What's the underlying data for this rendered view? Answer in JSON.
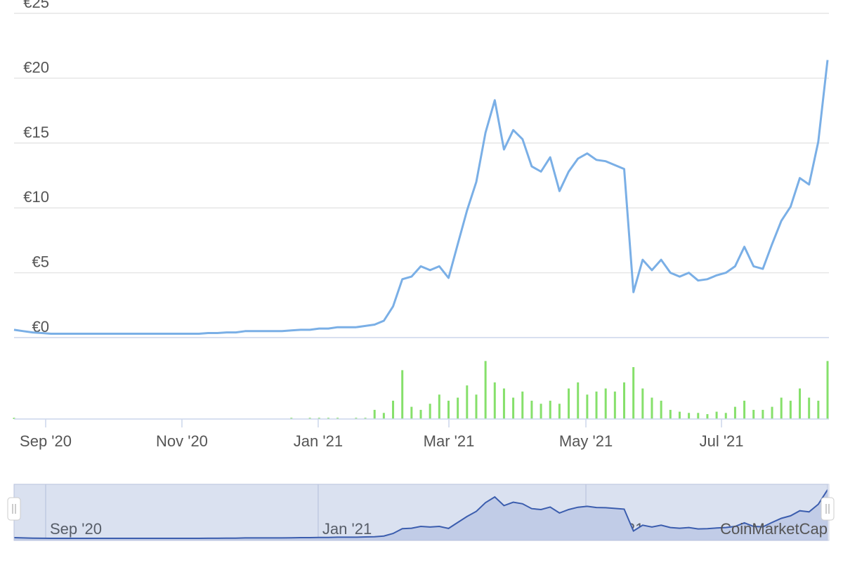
{
  "chart_data": [
    {
      "type": "line",
      "color": "#7aafe6",
      "values": [
        0.6,
        0.5,
        0.4,
        0.35,
        0.3,
        0.3,
        0.3,
        0.3,
        0.3,
        0.3,
        0.3,
        0.3,
        0.3,
        0.3,
        0.3,
        0.3,
        0.3,
        0.3,
        0.3,
        0.3,
        0.3,
        0.35,
        0.35,
        0.4,
        0.4,
        0.5,
        0.5,
        0.5,
        0.5,
        0.5,
        0.55,
        0.6,
        0.6,
        0.7,
        0.7,
        0.8,
        0.8,
        0.8,
        0.9,
        1.0,
        1.3,
        2.4,
        4.5,
        4.7,
        5.5,
        5.2,
        5.5,
        4.6,
        7.2,
        9.8,
        12.0,
        15.8,
        18.3,
        14.5,
        16.0,
        15.3,
        13.2,
        12.8,
        13.9,
        11.3,
        12.8,
        13.8,
        14.2,
        13.7,
        13.6,
        13.3,
        13.0,
        3.5,
        6.0,
        5.2,
        6.0,
        5.0,
        4.7,
        5.0,
        4.4,
        4.5,
        4.8,
        5.0,
        5.5,
        7.0,
        5.5,
        5.3,
        7.2,
        9.0,
        10.1,
        12.3,
        11.8,
        15.1,
        21.4
      ],
      "xlim": [
        0,
        88
      ],
      "xticks": [
        {
          "value": 3.42,
          "label": "Sep '20"
        },
        {
          "value": 18.16,
          "label": "Nov '20"
        },
        {
          "value": 32.9,
          "label": "Jan '21"
        },
        {
          "value": 47.04,
          "label": "Mar '21"
        },
        {
          "value": 61.86,
          "label": "May '21"
        },
        {
          "value": 76.53,
          "label": "Jul '21"
        }
      ],
      "ylim": [
        0,
        25
      ],
      "yticks": [
        {
          "value": 0,
          "label": "€0"
        },
        {
          "value": 5,
          "label": "€5"
        },
        {
          "value": 10,
          "label": "€10"
        },
        {
          "value": 15,
          "label": "€15"
        },
        {
          "value": 20,
          "label": "€20"
        },
        {
          "value": 25,
          "label": "€25"
        }
      ],
      "grid": true
    },
    {
      "type": "bar",
      "color": "#86e06b",
      "ylim": [
        0,
        100
      ],
      "values": [
        2,
        0,
        0,
        0,
        0,
        0,
        0,
        0,
        0,
        0,
        0,
        0,
        0,
        0,
        0,
        0,
        0,
        0,
        0,
        0,
        0,
        0,
        0,
        0,
        0,
        0,
        0,
        0,
        0,
        0,
        2,
        0,
        2,
        2,
        2,
        2,
        0,
        2,
        2,
        15,
        10,
        30,
        80,
        20,
        15,
        25,
        40,
        30,
        35,
        55,
        40,
        95,
        60,
        50,
        35,
        45,
        30,
        25,
        30,
        25,
        50,
        60,
        40,
        45,
        50,
        45,
        60,
        85,
        50,
        35,
        30,
        15,
        12,
        10,
        10,
        8,
        12,
        10,
        20,
        30,
        15,
        15,
        20,
        35,
        30,
        50,
        35,
        30,
        95
      ]
    }
  ],
  "watermark": "CoinMarketCap"
}
